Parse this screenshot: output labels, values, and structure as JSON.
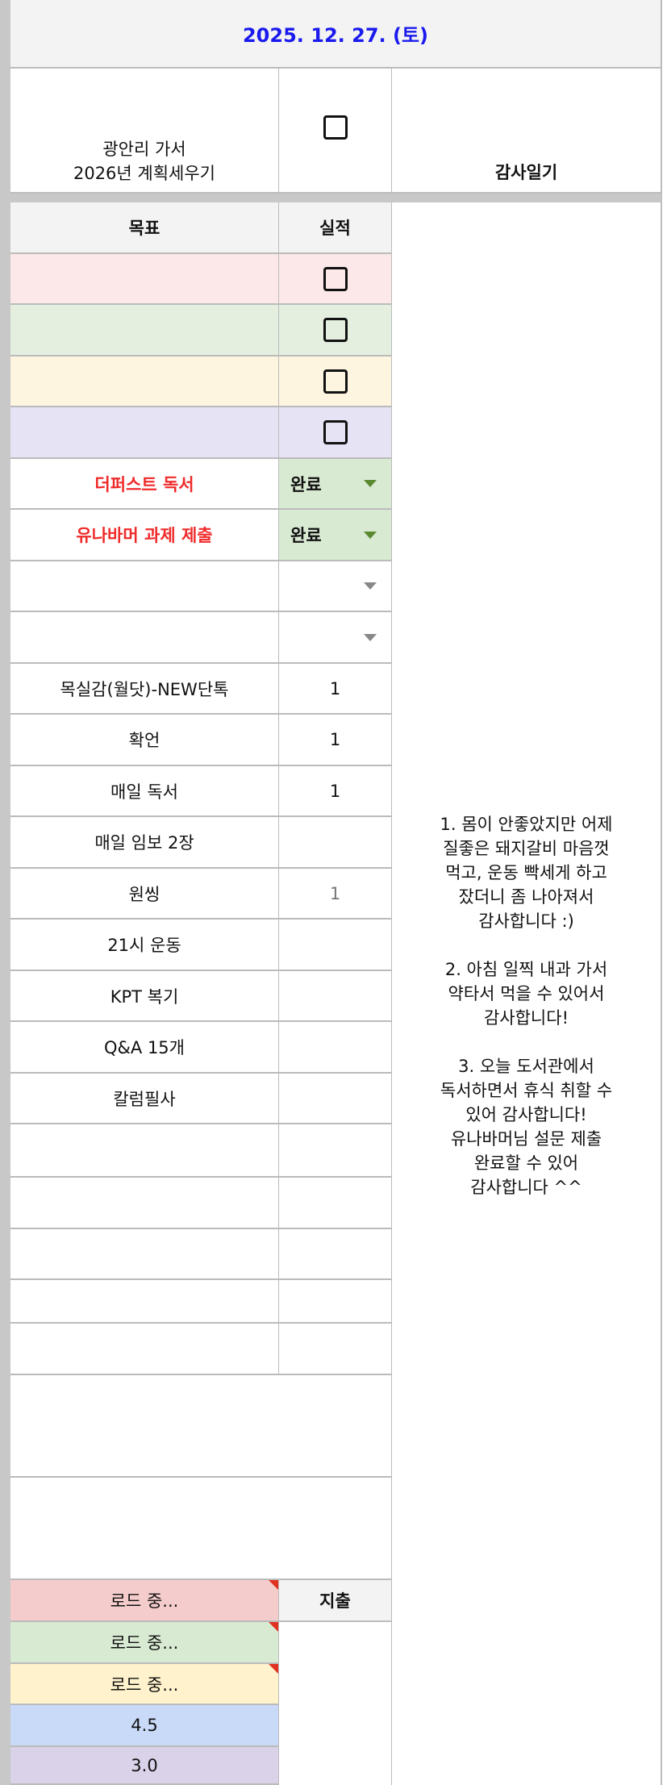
{
  "header": {
    "date": "2025. 12. 27. (토)",
    "date_color": "#1a1aee"
  },
  "top": {
    "goal": "광안리 가서\n2026년 계획세우기",
    "gratitude_title": "감사일기"
  },
  "columns": {
    "goal": "목표",
    "result": "실적",
    "expense": "지출"
  },
  "colored_rows": [
    "#fce8e8",
    "#e4efdf",
    "#fdf5e0",
    "#e6e3f5"
  ],
  "tasks": [
    {
      "goal": "더퍼스트 독서",
      "result": "완료"
    },
    {
      "goal": "유나바머 과제 제출",
      "result": "완료"
    }
  ],
  "habits": [
    {
      "goal": "목실감(월닷)-NEW단톡",
      "result": "1"
    },
    {
      "goal": "확언",
      "result": "1"
    },
    {
      "goal": "매일 독서",
      "result": "1"
    },
    {
      "goal": "매일 임보 2장",
      "result": ""
    },
    {
      "goal": "원씽",
      "result": "1"
    },
    {
      "goal": "21시 운동",
      "result": ""
    },
    {
      "goal": "KPT 복기",
      "result": ""
    },
    {
      "goal": "Q&A 15개",
      "result": ""
    },
    {
      "goal": "칼럼필사",
      "result": ""
    }
  ],
  "gratitude": "1. 몸이 안좋았지만 어제\n질좋은 돼지갈비 마음껏\n먹고, 운동 빡세게 하고\n잤더니 좀 나아져서\n감사합니다 :)\n\n2. 아침 일찍 내과 가서\n약타서 먹을 수 있어서\n감사합니다!\n\n3. 오늘 도서관에서\n독서하면서 휴식 취할 수\n있어 감사합니다!\n유나바머님 설문 제출\n완료할 수 있어\n감사합니다 ^^",
  "bottom": [
    {
      "value": "로드 중...",
      "color": "#f4cccc"
    },
    {
      "value": "로드 중...",
      "color": "#d9ead3"
    },
    {
      "value": "로드 중...",
      "color": "#fff2cc"
    },
    {
      "value": "4.5",
      "color": "#c9daf8"
    },
    {
      "value": "3.0",
      "color": "#d9d2e9"
    }
  ]
}
